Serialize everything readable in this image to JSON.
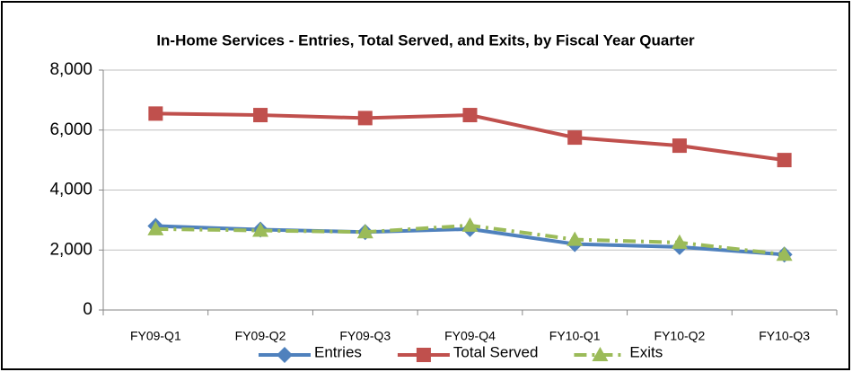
{
  "chart_data": {
    "type": "line",
    "title": "In-Home Services - Entries, Total Served, and Exits, by Fiscal Year Quarter",
    "categories": [
      "FY09-Q1",
      "FY09-Q2",
      "FY09-Q3",
      "FY09-Q4",
      "FY10-Q1",
      "FY10-Q2",
      "FY10-Q3"
    ],
    "series": [
      {
        "name": "Entries",
        "color": "#4f81bd",
        "marker": "diamond",
        "line_style": "solid",
        "values": [
          2800,
          2680,
          2600,
          2700,
          2200,
          2100,
          1850
        ]
      },
      {
        "name": "Total Served",
        "color": "#c0504d",
        "marker": "square",
        "line_style": "solid",
        "values": [
          6550,
          6500,
          6400,
          6500,
          5750,
          5480,
          5000
        ]
      },
      {
        "name": "Exits",
        "color": "#9bbb59",
        "marker": "triangle",
        "line_style": "dashdot",
        "values": [
          2700,
          2650,
          2600,
          2820,
          2350,
          2250,
          1850
        ]
      }
    ],
    "ylim": [
      0,
      8000
    ],
    "yticks": [
      0,
      {
        "value": 2000,
        "label": "2,000"
      },
      {
        "value": 4000,
        "label": "4,000"
      },
      {
        "value": 6000,
        "label": "6,000"
      },
      {
        "value": 8000,
        "label": "8,000"
      }
    ],
    "grid": true,
    "legend": "bottom"
  }
}
